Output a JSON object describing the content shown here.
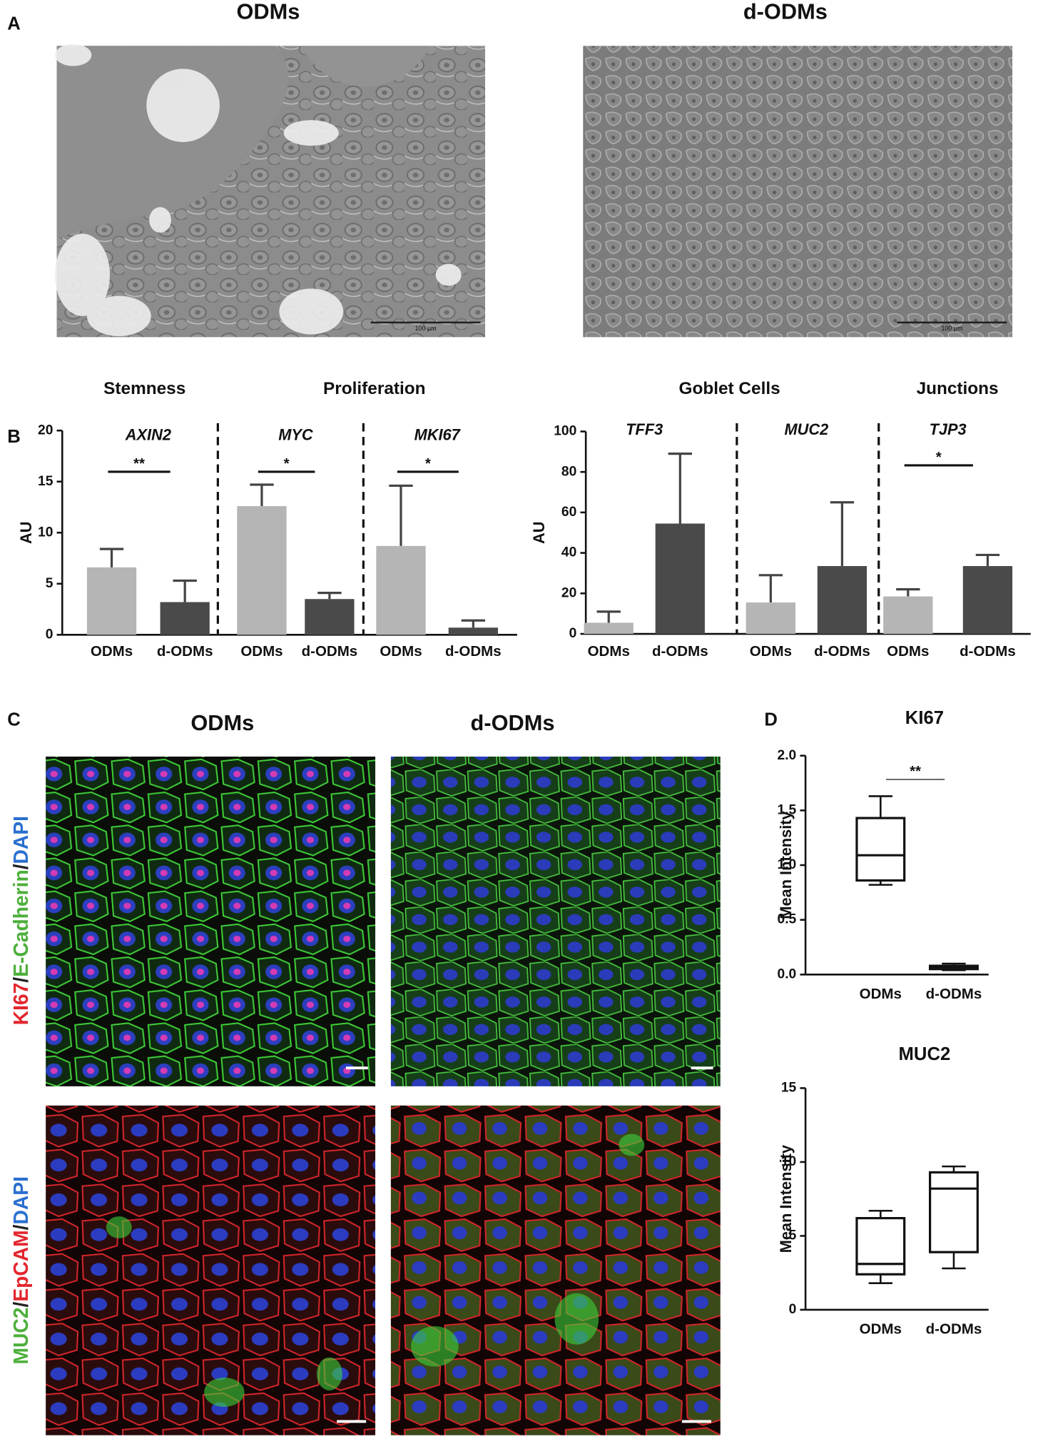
{
  "figure": {
    "panel_labels": [
      "A",
      "B",
      "C",
      "D"
    ],
    "image_titles": [
      "ODMs",
      "d-ODMs",
      "ODMs",
      "d-ODMs"
    ],
    "scale_labels": [
      "100 µm",
      "100 µm"
    ],
    "stain_labels": [
      [
        {
          "text": "KI67",
          "color": "#e3262e"
        },
        {
          "text": "/",
          "color": "#222222"
        },
        {
          "text": "E-Cadherin",
          "color": "#4caf3a"
        },
        {
          "text": "/",
          "color": "#222222"
        },
        {
          "text": "DAPI",
          "color": "#2a6fd0"
        }
      ],
      [
        {
          "text": "MUC2",
          "color": "#4caf3a"
        },
        {
          "text": "/",
          "color": "#222222"
        },
        {
          "text": "EpCAM",
          "color": "#e3262e"
        },
        {
          "text": "/",
          "color": "#222222"
        },
        {
          "text": "DAPI",
          "color": "#2a6fd0"
        }
      ]
    ]
  },
  "chart_data": [
    {
      "type": "bar",
      "ylabel": "AU",
      "headers": [
        "Stemness",
        "Proliferation"
      ],
      "groups": [
        {
          "name": "AXIN2",
          "significance": "**"
        },
        {
          "name": "MYC",
          "significance": "*"
        },
        {
          "name": "MKI67",
          "significance": "*"
        }
      ],
      "categories": [
        "ODMs",
        "d-ODMs",
        "ODMs",
        "d-ODMs",
        "ODMs",
        "d-ODMs"
      ],
      "values": [
        6.6,
        3.2,
        12.6,
        3.5,
        8.7,
        0.7
      ],
      "errors": [
        1.8,
        2.1,
        2.1,
        0.6,
        5.9,
        0.7
      ],
      "bar_colors": [
        "#b5b5b5",
        "#4a4a4a"
      ],
      "ylim": [
        0,
        20
      ],
      "yticks": [
        0,
        5,
        10,
        15,
        20
      ]
    },
    {
      "type": "bar",
      "ylabel": "AU",
      "headers": [
        "Goblet Cells",
        "Junctions"
      ],
      "groups": [
        {
          "name": "TFF3"
        },
        {
          "name": "MUC2"
        },
        {
          "name": "TJP3",
          "significance": "*"
        }
      ],
      "categories": [
        "ODMs",
        "d-ODMs",
        "ODMs",
        "d-ODMs",
        "ODMs",
        "d-ODMs"
      ],
      "values": [
        5.5,
        54.5,
        15.5,
        33.5,
        18.5,
        33.5
      ],
      "errors": [
        5.5,
        34.5,
        13.5,
        31.5,
        3.5,
        5.5
      ],
      "bar_colors": [
        "#b5b5b5",
        "#4a4a4a"
      ],
      "ylim": [
        0,
        100
      ],
      "yticks": [
        0,
        20,
        40,
        60,
        80,
        100
      ]
    },
    {
      "type": "box",
      "title": "KI67",
      "ylabel": "Mean Intensity",
      "significance": "**",
      "categories": [
        "ODMs",
        "d-ODMs"
      ],
      "boxes": [
        {
          "min": 0.82,
          "q1": 0.86,
          "median": 1.09,
          "q3": 1.43,
          "max": 1.63
        },
        {
          "min": 0.04,
          "q1": 0.05,
          "median": 0.07,
          "q3": 0.08,
          "max": 0.1
        }
      ],
      "ylim": [
        0,
        2
      ],
      "yticks": [
        {
          "value": 0,
          "label": "0.0"
        },
        0.5,
        {
          "value": 1,
          "label": "1.0"
        },
        1.5,
        {
          "value": 2,
          "label": "2.0"
        }
      ]
    },
    {
      "type": "box",
      "title": "MUC2",
      "ylabel": "Mean Intensity",
      "categories": [
        "ODMs",
        "d-ODMs"
      ],
      "boxes": [
        {
          "min": 1.8,
          "q1": 2.4,
          "median": 3.1,
          "q3": 6.2,
          "max": 6.7
        },
        {
          "min": 2.8,
          "q1": 3.9,
          "median": 8.2,
          "q3": 9.3,
          "max": 9.7
        }
      ],
      "ylim": [
        0,
        15
      ],
      "yticks": [
        0,
        5,
        10,
        15
      ]
    }
  ]
}
